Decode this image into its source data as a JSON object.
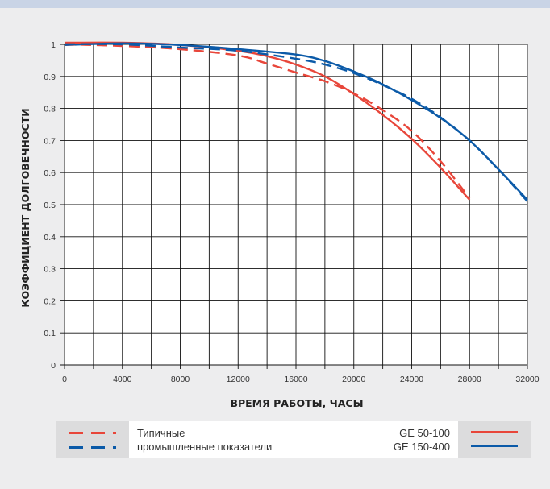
{
  "colors": {
    "red": "#e8463a",
    "blue": "#0b5aa8",
    "grid": "#111111",
    "background": "#ededee",
    "top_bar": "#c9d4e6"
  },
  "legend": {
    "left_lines": [
      "Типичные",
      "промышленные показатели"
    ],
    "right_lines": [
      "GE 50-100",
      "GE 150-400"
    ]
  },
  "chart_data": {
    "type": "line",
    "title": "",
    "xlabel": "ВРЕМЯ РАБОТЫ, ЧАСЫ",
    "ylabel": "КОЭФФИЦИЕНТ ДОЛГОВЕЧНОСТИ",
    "xlim": [
      0,
      32000
    ],
    "ylim": [
      0,
      1
    ],
    "x_ticks": [
      0,
      4000,
      8000,
      12000,
      16000,
      20000,
      24000,
      28000,
      32000
    ],
    "x_tick_labels": [
      "0",
      "4000",
      "8000",
      "12000",
      "16000",
      "20000",
      "24000",
      "28000",
      "32000"
    ],
    "y_ticks": [
      0,
      0.1,
      0.2,
      0.3,
      0.4,
      0.5,
      0.6,
      0.7,
      0.8,
      0.9,
      1
    ],
    "y_tick_labels": [
      "0",
      "0.1",
      "0.2",
      "0.3",
      "0.4",
      "0.5",
      "0.6",
      "0.7",
      "0.8",
      "0.9",
      "1"
    ],
    "grid": true,
    "series": [
      {
        "name": "GE 50-100",
        "color": "#e8463a",
        "style": "solid",
        "x": [
          0,
          4000,
          8000,
          12000,
          14000,
          16000,
          18000,
          20000,
          22000,
          24000,
          26000,
          28000
        ],
        "y": [
          1.005,
          1.005,
          0.998,
          0.98,
          0.963,
          0.937,
          0.9,
          0.845,
          0.78,
          0.705,
          0.615,
          0.515
        ]
      },
      {
        "name": "GE 150-400",
        "color": "#0b5aa8",
        "style": "solid",
        "x": [
          0,
          4000,
          8000,
          12000,
          16000,
          18000,
          20000,
          22000,
          24000,
          26000,
          28000,
          30000,
          32000
        ],
        "y": [
          0.998,
          1.003,
          0.998,
          0.985,
          0.968,
          0.948,
          0.915,
          0.875,
          0.826,
          0.77,
          0.7,
          0.61,
          0.515
        ]
      },
      {
        "name": "Типичные промышленные показатели (GE 50-100)",
        "color": "#e8463a",
        "style": "dashed",
        "x": [
          0,
          4000,
          8000,
          12000,
          14000,
          16000,
          18000,
          20000,
          22000,
          24000,
          26000,
          28000
        ],
        "y": [
          1.0,
          0.995,
          0.985,
          0.965,
          0.94,
          0.912,
          0.885,
          0.847,
          0.795,
          0.73,
          0.635,
          0.52
        ]
      },
      {
        "name": "Типичные промышленные показатели (GE 150-400)",
        "color": "#0b5aa8",
        "style": "dashed",
        "x": [
          0,
          4000,
          8000,
          12000,
          16000,
          18000,
          20000,
          22000,
          24000,
          26000,
          28000,
          30000,
          32000
        ],
        "y": [
          1.0,
          1.0,
          0.99,
          0.98,
          0.955,
          0.937,
          0.91,
          0.873,
          0.83,
          0.772,
          0.7,
          0.61,
          0.51
        ]
      }
    ]
  }
}
